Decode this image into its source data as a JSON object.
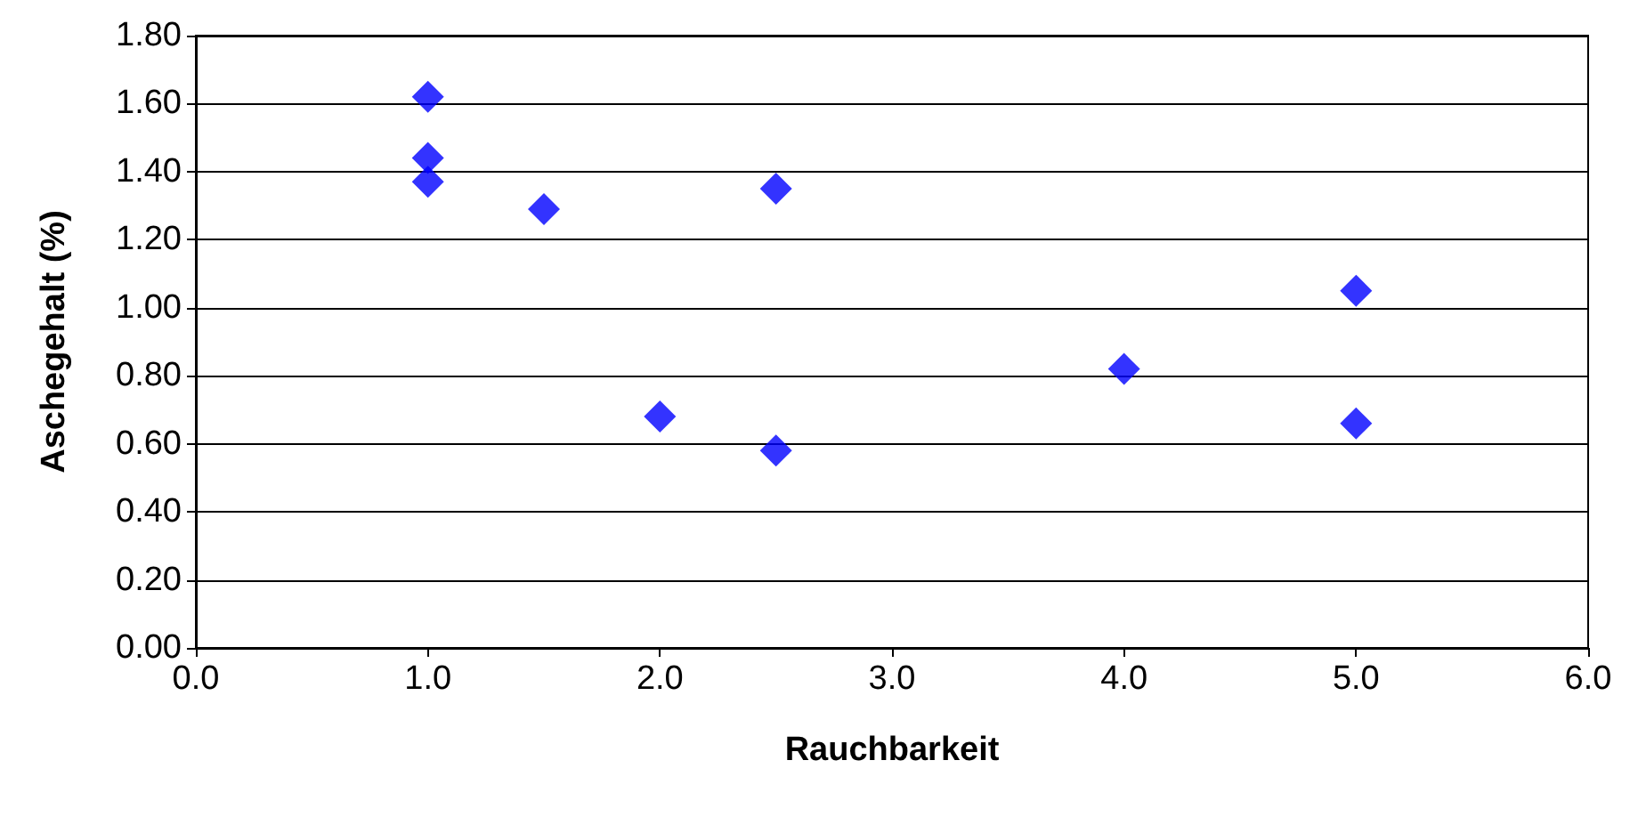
{
  "chart_data": {
    "type": "scatter",
    "xlabel": "Rauchbarkeit",
    "ylabel": "Aschegehalt (%)",
    "x": [
      1.0,
      1.0,
      1.0,
      1.5,
      2.5,
      2.0,
      2.5,
      4.0,
      5.0,
      5.0
    ],
    "series": [
      {
        "color": "#0000ff",
        "values": [
          1.62,
          1.44,
          1.37,
          1.29,
          1.35,
          0.68,
          0.58,
          0.82,
          1.05,
          0.66
        ]
      }
    ],
    "xlim": [
      0,
      6
    ],
    "xticks": [
      {
        "value": 0,
        "label": "0.0"
      },
      {
        "value": 1,
        "label": "1.0"
      },
      {
        "value": 2,
        "label": "2.0"
      },
      {
        "value": 3,
        "label": "3.0"
      },
      {
        "value": 4,
        "label": "4.0"
      },
      {
        "value": 5,
        "label": "5.0"
      },
      {
        "value": 6,
        "label": "6.0"
      }
    ],
    "ylim": [
      0,
      1.8
    ],
    "yticks": [
      {
        "value": 0,
        "label": "0.00"
      },
      {
        "value": 0.2,
        "label": "0.20"
      },
      {
        "value": 0.4,
        "label": "0.40"
      },
      {
        "value": 0.6,
        "label": "0.60"
      },
      {
        "value": 0.8,
        "label": "0.80"
      },
      {
        "value": 1.0,
        "label": "1.00"
      },
      {
        "value": 1.2,
        "label": "1.20"
      },
      {
        "value": 1.4,
        "label": "1.40"
      },
      {
        "value": 1.6,
        "label": "1.60"
      },
      {
        "value": 1.8,
        "label": "1.80"
      }
    ],
    "grid": "y",
    "marker": "diamond"
  }
}
